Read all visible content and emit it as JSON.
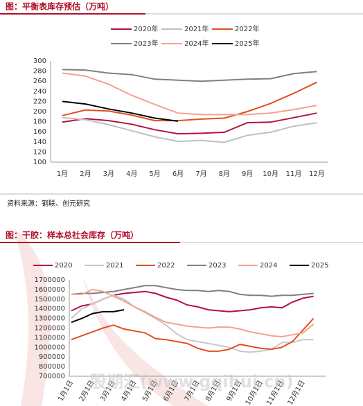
{
  "watermark": "股期汇(www.gqihui.cn)",
  "chart_data": [
    {
      "type": "line",
      "title": "图：平衡表库存预估（万吨）",
      "source": "资料来源：钢联、创元研究",
      "categories": [
        "1月",
        "2月",
        "3月",
        "4月",
        "5月",
        "6月",
        "7月",
        "8月",
        "9月",
        "10月",
        "11月",
        "12月"
      ],
      "ylim": [
        100,
        300
      ],
      "yticks": [
        100,
        120,
        140,
        160,
        180,
        200,
        220,
        240,
        260,
        280,
        300
      ],
      "series": [
        {
          "name": "2020年",
          "color": "#b5123e",
          "values": [
            179,
            186,
            182,
            175,
            164,
            156,
            157,
            159,
            178,
            179,
            188,
            197
          ]
        },
        {
          "name": "2021年",
          "color": "#bfbfbf",
          "values": [
            188,
            184,
            174,
            162,
            150,
            141,
            143,
            139,
            153,
            159,
            171,
            178
          ]
        },
        {
          "name": "2022年",
          "color": "#e0501e",
          "values": [
            192,
            203,
            201,
            193,
            182,
            182,
            185,
            187,
            200,
            216,
            236,
            258
          ]
        },
        {
          "name": "2023年",
          "color": "#808080",
          "values": [
            283,
            282,
            276,
            273,
            264,
            262,
            260,
            262,
            264,
            265,
            275,
            279
          ]
        },
        {
          "name": "2024年",
          "color": "#f4a28c",
          "values": [
            276,
            270,
            254,
            232,
            214,
            197,
            194,
            194,
            194,
            197,
            204,
            212
          ]
        },
        {
          "name": "2025年",
          "color": "#000000",
          "values": [
            220,
            215,
            205,
            197,
            187,
            181,
            null,
            null,
            null,
            null,
            null,
            null
          ]
        }
      ]
    },
    {
      "type": "line",
      "title": "图：干胶：样本总社会库存（万吨）",
      "categories": [
        "1月1日",
        null,
        "2月1日",
        null,
        "3月1日",
        null,
        "4月1日",
        null,
        "5月1日",
        null,
        "6月1日",
        null,
        "7月1日",
        null,
        "8月1日",
        null,
        "9月1日",
        null,
        "10月1日",
        null,
        "11月1日",
        null,
        "12月1日",
        null
      ],
      "ylim": [
        700000,
        1700000
      ],
      "yticks": [
        700000,
        800000,
        900000,
        1000000,
        1100000,
        1200000,
        1300000,
        1400000,
        1500000,
        1600000,
        1700000
      ],
      "series": [
        {
          "name": "2020",
          "color": "#b5123e",
          "values": [
            1380000,
            1430000,
            1450000,
            1500000,
            1540000,
            1560000,
            1570000,
            1580000,
            1560000,
            1520000,
            1490000,
            1440000,
            1420000,
            1390000,
            1380000,
            1370000,
            1380000,
            1390000,
            1410000,
            1420000,
            1410000,
            1470000,
            1510000,
            1530000
          ]
        },
        {
          "name": "2021",
          "color": "#c8c8c8",
          "values": [
            1300000,
            1400000,
            1450000,
            1500000,
            1540000,
            1500000,
            1420000,
            1360000,
            1300000,
            1230000,
            1140000,
            1080000,
            1060000,
            1040000,
            1020000,
            1000000,
            960000,
            950000,
            960000,
            980000,
            1050000,
            1050000,
            1080000,
            1080000
          ]
        },
        {
          "name": "2022",
          "color": "#e0501e",
          "values": [
            1080000,
            1120000,
            1160000,
            1200000,
            1230000,
            1190000,
            1170000,
            1150000,
            1090000,
            1080000,
            1060000,
            1040000,
            990000,
            960000,
            960000,
            980000,
            1030000,
            1010000,
            990000,
            980000,
            1000000,
            1060000,
            1180000,
            1300000
          ]
        },
        {
          "name": "2023",
          "color": "#808080",
          "values": [
            1550000,
            1560000,
            1560000,
            1570000,
            1580000,
            1600000,
            1620000,
            1640000,
            1640000,
            1620000,
            1600000,
            1590000,
            1590000,
            1580000,
            1590000,
            1580000,
            1550000,
            1540000,
            1540000,
            1530000,
            1540000,
            1540000,
            1550000,
            1560000
          ]
        },
        {
          "name": "2024",
          "color": "#f4a28c",
          "values": [
            1550000,
            1550000,
            1600000,
            1580000,
            1530000,
            1480000,
            1420000,
            1370000,
            1310000,
            1260000,
            1240000,
            1220000,
            1210000,
            1200000,
            1210000,
            1210000,
            1190000,
            1160000,
            1140000,
            1120000,
            1110000,
            1130000,
            1150000,
            1240000
          ]
        },
        {
          "name": "2025",
          "color": "#000000",
          "values": [
            1260000,
            1300000,
            1350000,
            1370000,
            1370000,
            1390000,
            null,
            null,
            null,
            null,
            null,
            null,
            null,
            null,
            null,
            null,
            null,
            null,
            null,
            null,
            null,
            null,
            null,
            null
          ]
        }
      ]
    }
  ]
}
